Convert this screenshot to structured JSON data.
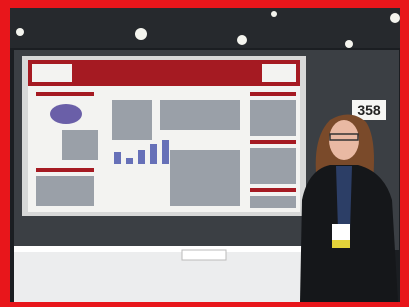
{
  "booth_sign": {
    "number": "358"
  }
}
